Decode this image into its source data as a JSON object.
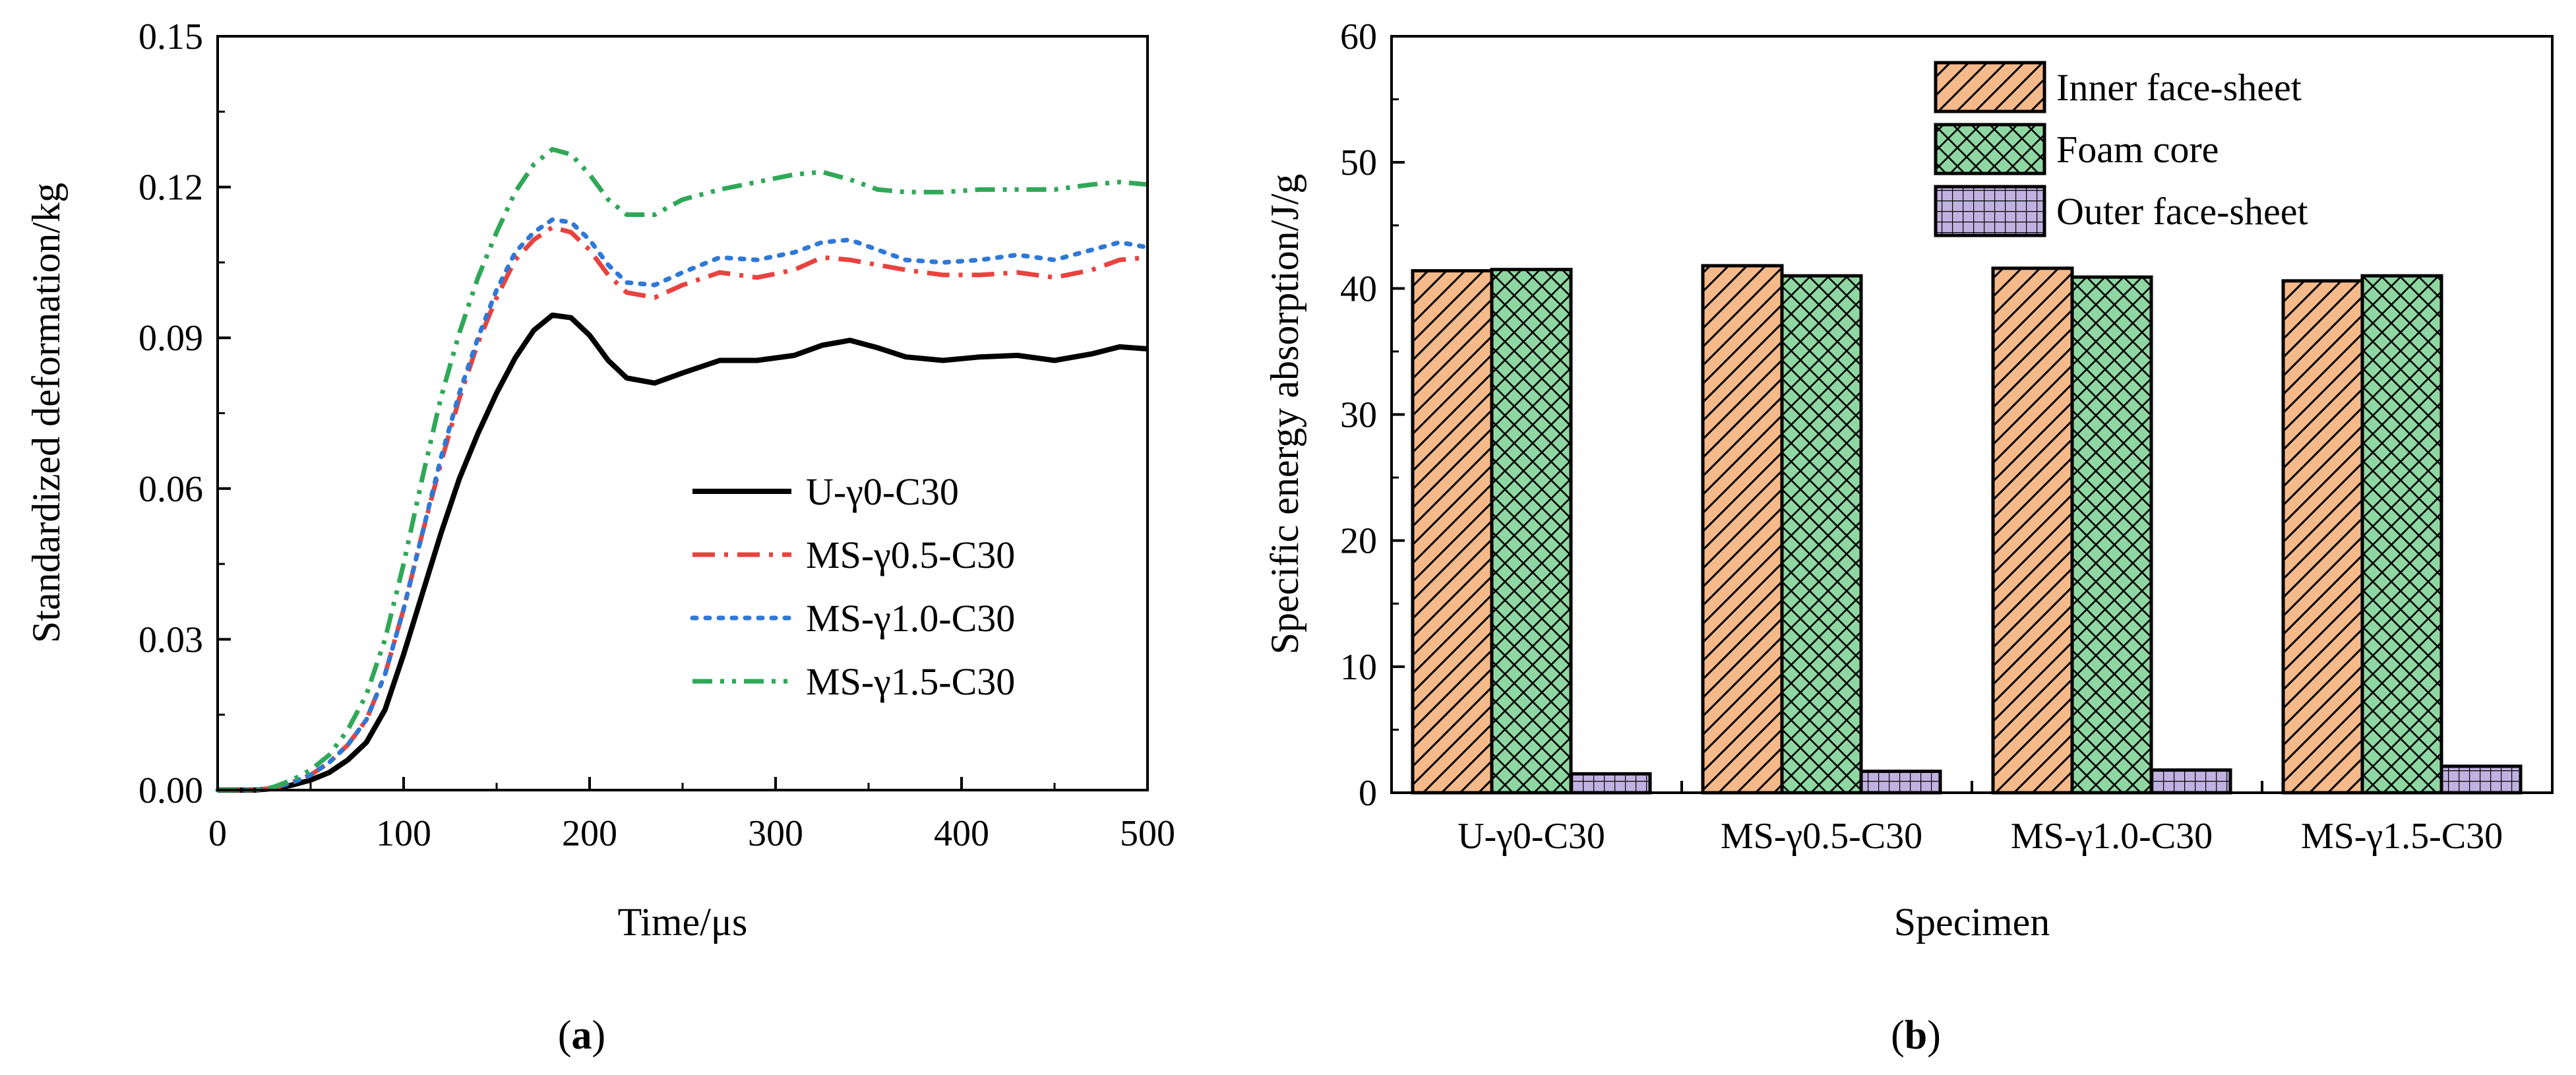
{
  "panel_labels": {
    "a": "a",
    "b": "b"
  },
  "chart_data": [
    {
      "panel": "a",
      "type": "line",
      "xlabel": "Time/μs",
      "ylabel": "Standardized deformation/kg",
      "xlim": [
        0,
        500
      ],
      "ylim": [
        0,
        0.15
      ],
      "x_ticks": [
        "0",
        "100",
        "200",
        "300",
        "400",
        "500"
      ],
      "y_ticks": [
        "0.00",
        "0.03",
        "0.06",
        "0.09",
        "0.12",
        "0.15"
      ],
      "grid": false,
      "legend_position": "lower-right",
      "series": [
        {
          "name": "U-γ0-C30",
          "color": "#000000",
          "style": "solid",
          "x": [
            0,
            20,
            30,
            40,
            50,
            60,
            70,
            80,
            90,
            100,
            110,
            120,
            130,
            140,
            150,
            160,
            170,
            180,
            190,
            200,
            210,
            220,
            235,
            250,
            270,
            290,
            310,
            325,
            340,
            355,
            370,
            390,
            410,
            430,
            450,
            470,
            485,
            500
          ],
          "y": [
            0,
            0,
            0.0003,
            0.001,
            0.002,
            0.0035,
            0.006,
            0.0095,
            0.016,
            0.027,
            0.039,
            0.051,
            0.062,
            0.071,
            0.079,
            0.086,
            0.0915,
            0.0945,
            0.094,
            0.0905,
            0.0855,
            0.082,
            0.081,
            0.083,
            0.0855,
            0.0855,
            0.0865,
            0.0885,
            0.0895,
            0.088,
            0.0862,
            0.0855,
            0.0862,
            0.0865,
            0.0855,
            0.0868,
            0.0882,
            0.0878
          ]
        },
        {
          "name": "MS-γ0.5-C30",
          "color": "#e8433f",
          "style": "dash-dot",
          "x": [
            0,
            20,
            30,
            40,
            50,
            60,
            70,
            80,
            90,
            100,
            110,
            120,
            130,
            140,
            150,
            160,
            170,
            180,
            190,
            200,
            210,
            220,
            235,
            250,
            270,
            290,
            310,
            325,
            340,
            355,
            370,
            390,
            410,
            430,
            450,
            470,
            485,
            500
          ],
          "y": [
            0,
            0,
            0.0004,
            0.0015,
            0.003,
            0.0055,
            0.009,
            0.014,
            0.023,
            0.036,
            0.051,
            0.065,
            0.078,
            0.089,
            0.098,
            0.1055,
            0.1095,
            0.112,
            0.111,
            0.1075,
            0.1025,
            0.099,
            0.098,
            0.1005,
            0.103,
            0.102,
            0.1035,
            0.106,
            0.1055,
            0.1045,
            0.1035,
            0.1025,
            0.1025,
            0.103,
            0.102,
            0.1035,
            0.1055,
            0.106
          ]
        },
        {
          "name": "MS-γ1.0-C30",
          "color": "#2f78d6",
          "style": "dotted",
          "x": [
            0,
            20,
            30,
            40,
            50,
            60,
            70,
            80,
            90,
            100,
            110,
            120,
            130,
            140,
            150,
            160,
            170,
            180,
            190,
            200,
            210,
            220,
            235,
            250,
            270,
            290,
            310,
            325,
            340,
            355,
            370,
            390,
            410,
            430,
            450,
            470,
            485,
            500
          ],
          "y": [
            0,
            0,
            0.0004,
            0.0015,
            0.003,
            0.0055,
            0.009,
            0.014,
            0.023,
            0.036,
            0.051,
            0.066,
            0.079,
            0.09,
            0.0995,
            0.107,
            0.111,
            0.1135,
            0.113,
            0.1095,
            0.1045,
            0.101,
            0.1005,
            0.103,
            0.106,
            0.1055,
            0.107,
            0.109,
            0.1095,
            0.1075,
            0.1055,
            0.105,
            0.1055,
            0.1065,
            0.1055,
            0.1075,
            0.109,
            0.108
          ]
        },
        {
          "name": "MS-γ1.5-C30",
          "color": "#2fa858",
          "style": "dash-dot-dot",
          "x": [
            0,
            20,
            30,
            40,
            50,
            60,
            70,
            80,
            90,
            100,
            110,
            120,
            130,
            140,
            150,
            160,
            170,
            180,
            190,
            200,
            210,
            220,
            235,
            250,
            270,
            290,
            310,
            325,
            340,
            355,
            370,
            390,
            410,
            430,
            450,
            470,
            485,
            500
          ],
          "y": [
            0,
            0,
            0.0006,
            0.002,
            0.004,
            0.007,
            0.012,
            0.019,
            0.03,
            0.045,
            0.062,
            0.078,
            0.091,
            0.102,
            0.111,
            0.119,
            0.1245,
            0.1275,
            0.1265,
            0.1225,
            0.1175,
            0.1145,
            0.1145,
            0.1175,
            0.1195,
            0.121,
            0.1225,
            0.123,
            0.1215,
            0.1195,
            0.119,
            0.119,
            0.1195,
            0.1195,
            0.1195,
            0.1205,
            0.121,
            0.1205
          ]
        }
      ]
    },
    {
      "panel": "b",
      "type": "bar",
      "xlabel": "Specimen",
      "ylabel": "Specific energy absorption/J/g",
      "ylim": [
        0,
        60
      ],
      "y_ticks": [
        "0",
        "10",
        "20",
        "30",
        "40",
        "50",
        "60"
      ],
      "categories": [
        "U-γ0-C30",
        "MS-γ0.5-C30",
        "MS-γ1.0-C30",
        "MS-γ1.5-C30"
      ],
      "grid": false,
      "legend_position": "top-right",
      "series": [
        {
          "name": "Inner face-sheet",
          "color": "#f6b98a",
          "pattern": "diagonal-hatch",
          "values": [
            41.4,
            41.8,
            41.6,
            40.6
          ]
        },
        {
          "name": "Foam core",
          "color": "#8fd7a2",
          "pattern": "cross-hatch",
          "values": [
            41.5,
            41.0,
            40.9,
            41.0
          ]
        },
        {
          "name": "Outer face-sheet",
          "color": "#bfb2e0",
          "pattern": "grid",
          "values": [
            1.5,
            1.7,
            1.8,
            2.1
          ]
        }
      ]
    }
  ]
}
